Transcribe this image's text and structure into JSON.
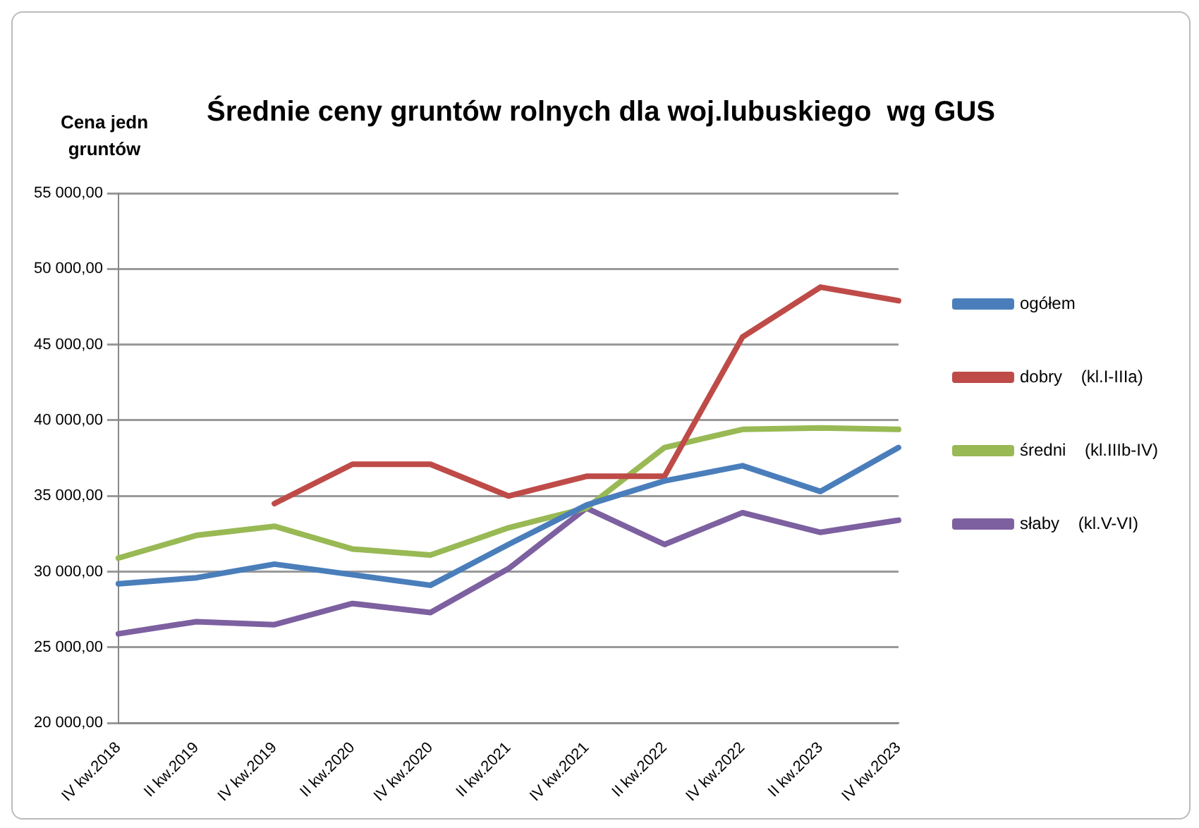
{
  "chart_data": {
    "type": "line",
    "title": "Średnie ceny gruntów rolnych dla woj.lubuskiego  wg GUS",
    "ylabel": "Cena jedn gruntów",
    "categories": [
      "IV kw.2018",
      "II kw.2019",
      "IV kw.2019",
      "II kw.2020",
      "IV kw.2020",
      "II kw.2021",
      "IV kw.2021",
      "II kw.2022",
      "IV kw.2022",
      "II kw.2023",
      "IV kw.2023"
    ],
    "series": [
      {
        "name": "ogółem",
        "color": "#4a7ebb",
        "values": [
          29200,
          29600,
          30500,
          29800,
          29100,
          31800,
          34400,
          36000,
          37000,
          35300,
          38200
        ]
      },
      {
        "name": "dobry    (kl.I-IIIa)",
        "color": "#be4b48",
        "values": [
          null,
          null,
          34500,
          37100,
          37100,
          35000,
          36300,
          36300,
          45500,
          48800,
          47900
        ]
      },
      {
        "name": "średni    (kl.IIIb-IV)",
        "color": "#98b954",
        "values": [
          30900,
          32400,
          33000,
          31500,
          31100,
          32900,
          34200,
          38200,
          39400,
          39500,
          39400
        ]
      },
      {
        "name": "słaby    (kl.V-VI)",
        "color": "#7d60a0",
        "values": [
          25900,
          26700,
          26500,
          27900,
          27300,
          30200,
          34200,
          31800,
          33900,
          32600,
          33400
        ]
      }
    ],
    "ylim": [
      20000,
      55000
    ],
    "yticks": [
      {
        "value": 20000,
        "label": "20 000,00"
      },
      {
        "value": 25000,
        "label": "25 000,00"
      },
      {
        "value": 30000,
        "label": "30 000,00"
      },
      {
        "value": 35000,
        "label": "35 000,00"
      },
      {
        "value": 40000,
        "label": "40 000,00"
      },
      {
        "value": 45000,
        "label": "45 000,00"
      },
      {
        "value": 50000,
        "label": "50 000,00"
      },
      {
        "value": 55000,
        "label": "55 000,00"
      }
    ],
    "grid": "y",
    "legend": "right",
    "marker": "none",
    "line_style": "solid"
  }
}
